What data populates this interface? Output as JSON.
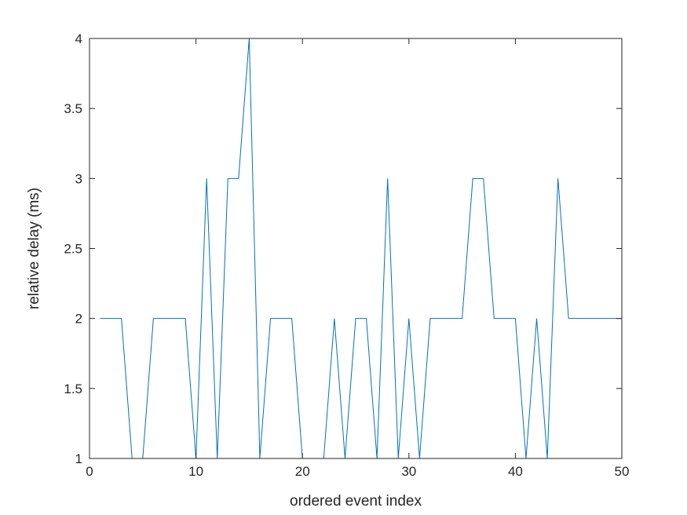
{
  "chart_data": {
    "type": "line",
    "title": "",
    "xlabel": "ordered event index",
    "ylabel": "relative delay (ms)",
    "xlim": [
      0,
      50
    ],
    "ylim": [
      1,
      4
    ],
    "xticks": [
      0,
      10,
      20,
      30,
      40,
      50
    ],
    "yticks": [
      1,
      1.5,
      2,
      2.5,
      3,
      3.5,
      4
    ],
    "xtick_labels": [
      "0",
      "10",
      "20",
      "30",
      "40",
      "50"
    ],
    "ytick_labels": [
      "1",
      "1.5",
      "2",
      "2.5",
      "3",
      "3.5",
      "4"
    ],
    "grid": false,
    "box": true,
    "series": [
      {
        "color": "#0072BD",
        "x": [
          1,
          2,
          3,
          4,
          5,
          6,
          7,
          8,
          9,
          10,
          11,
          12,
          13,
          14,
          15,
          16,
          17,
          18,
          19,
          20,
          21,
          22,
          23,
          24,
          25,
          26,
          27,
          28,
          29,
          30,
          31,
          32,
          33,
          34,
          35,
          36,
          37,
          38,
          39,
          40,
          41,
          42,
          43,
          44,
          45,
          46,
          47,
          48,
          49,
          50
        ],
        "y": [
          2,
          2,
          2,
          1,
          1,
          2,
          2,
          2,
          2,
          1,
          3,
          1,
          3,
          3,
          4,
          1,
          2,
          2,
          2,
          1,
          1,
          1,
          2,
          1,
          2,
          2,
          1,
          3,
          1,
          2,
          1,
          2,
          2,
          2,
          2,
          3,
          3,
          2,
          2,
          2,
          1,
          2,
          1,
          3,
          2,
          2,
          2,
          2,
          2,
          2
        ]
      }
    ]
  }
}
